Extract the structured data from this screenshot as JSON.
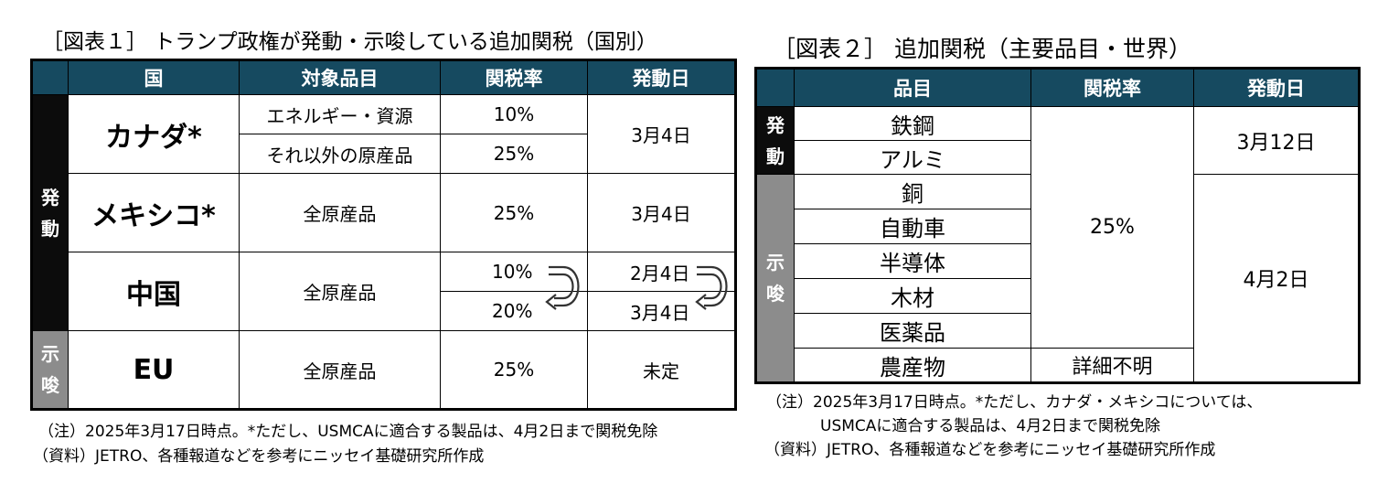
{
  "table1": {
    "title": "［図表１］ トランプ政権が発動・示唆している追加関税（国別）",
    "headers": [
      "国",
      "対象品目",
      "関税率",
      "発動日"
    ],
    "side_labels": {
      "enacted": "発動",
      "suggested": "示唆"
    },
    "rows": {
      "canada": {
        "country": "カナダ*",
        "item1": "エネルギー・資源",
        "rate1": "10%",
        "item2": "それ以外の原産品",
        "rate2": "25%",
        "date": "3月4日"
      },
      "mexico": {
        "country": "メキシコ*",
        "item": "全原産品",
        "rate": "25%",
        "date": "3月4日"
      },
      "china": {
        "country": "中国",
        "item": "全原産品",
        "rate1": "10%",
        "rate2": "20%",
        "date1": "2月4日",
        "date2": "3月4日"
      },
      "eu": {
        "country": "EU",
        "item": "全原産品",
        "rate": "25%",
        "date": "未定"
      }
    },
    "note": "（注）2025年3月17日時点。*ただし、USMCAに適合する製品は、4月2日まで関税免除",
    "source": "（資料）JETRO、各種報道などを参考にニッセイ基礎研究所作成"
  },
  "table2": {
    "title": "［図表２］ 追加関税（主要品目・世界）",
    "headers": [
      "品目",
      "関税率",
      "発動日"
    ],
    "side_labels": {
      "enacted": "発動",
      "suggested": "示唆"
    },
    "items": [
      "鉄鋼",
      "アルミ",
      "銅",
      "自動車",
      "半導体",
      "木材",
      "医薬品",
      "農産物"
    ],
    "rate_main": "25%",
    "rate_agri": "詳細不明",
    "date_enacted": "3月12日",
    "date_suggested": "4月2日",
    "note_line1": "（注）2025年3月17日時点。*ただし、カナダ・メキシコについては、",
    "note_line2": "USMCAに適合する製品は、4月2日まで関税免除",
    "source": "（資料）JETRO、各種報道などを参考にニッセイ基礎研究所作成"
  },
  "colors": {
    "header_bg": "#164a60",
    "enacted_bg": "#0c0c0c",
    "suggested_bg": "#8c8c8c"
  },
  "icons": [
    "curved-arrow-down-left-icon",
    "curved-arrow-down-left-icon"
  ]
}
